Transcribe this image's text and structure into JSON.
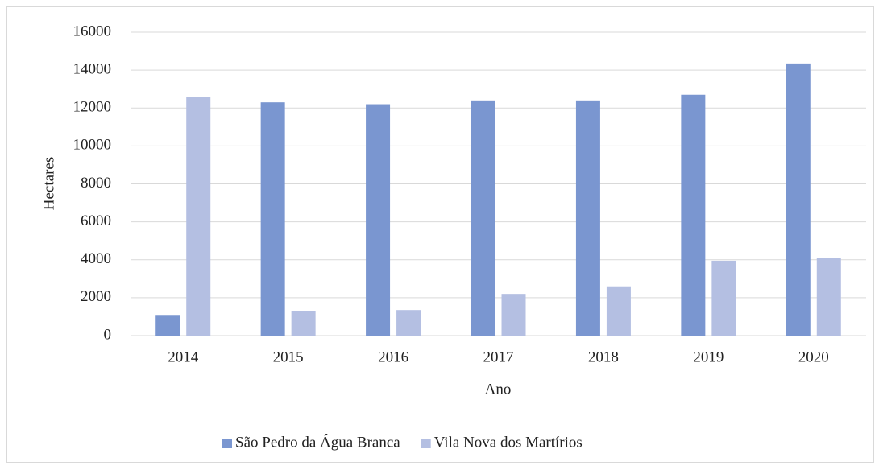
{
  "chart_data": {
    "type": "bar",
    "x_label": "Ano",
    "y_label": "Hectares",
    "categories": [
      "2014",
      "2015",
      "2016",
      "2017",
      "2018",
      "2019",
      "2020"
    ],
    "series": [
      {
        "name": "São Pedro da Água Branca",
        "color": "#7a96d0",
        "values": [
          1050,
          12300,
          12200,
          12400,
          12400,
          12700,
          14350
        ]
      },
      {
        "name": "Vila Nova dos Martírios",
        "color": "#b4bfe2",
        "values": [
          12600,
          1300,
          1350,
          2200,
          2600,
          3950,
          4100
        ]
      }
    ],
    "ylim": [
      0,
      16000
    ],
    "yticks": [
      0,
      2000,
      4000,
      6000,
      8000,
      10000,
      12000,
      14000,
      16000
    ],
    "grid": true,
    "legend": "bottom"
  }
}
